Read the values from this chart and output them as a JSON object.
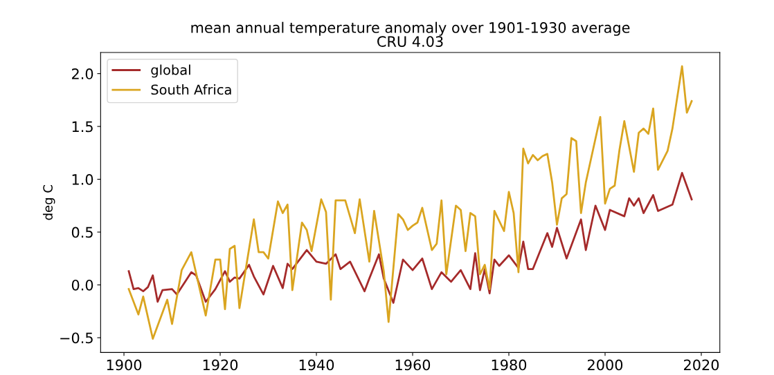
{
  "chart_data": {
    "type": "line",
    "title": "mean annual temperature anomaly over 1901-1930 average\nCRU 4.03",
    "ylabel": "deg C",
    "xlim": [
      1895.15,
      2023.85
    ],
    "ylim": [
      -0.64,
      2.2
    ],
    "xticks": [
      1900,
      1920,
      1940,
      1960,
      1980,
      2000,
      2020
    ],
    "yticks": [
      {
        "value": -0.5,
        "label": "−0.5"
      },
      {
        "value": 0,
        "label": "0.0"
      },
      {
        "value": 0.5,
        "label": "0.5"
      },
      {
        "value": 1,
        "label": "1.0"
      },
      {
        "value": 1.5,
        "label": "1.5"
      },
      {
        "value": 2,
        "label": "2.0"
      }
    ],
    "legend": "top left",
    "grid": false,
    "line_style": "solid",
    "marker": "none",
    "series": [
      {
        "name": "global",
        "color": "#a52a2a",
        "x": [
          1901,
          1902,
          1903,
          1904,
          1905,
          1906,
          1907,
          1908,
          1910,
          1911,
          1914,
          1915,
          1917,
          1919,
          1921,
          1922,
          1923,
          1924,
          1926,
          1927,
          1929,
          1931,
          1933,
          1934,
          1935,
          1938,
          1940,
          1942,
          1944,
          1945,
          1947,
          1950,
          1951,
          1953,
          1954,
          1956,
          1958,
          1960,
          1962,
          1964,
          1966,
          1968,
          1970,
          1972,
          1973,
          1974,
          1975,
          1976,
          1977,
          1978,
          1980,
          1982,
          1983,
          1984,
          1985,
          1988,
          1989,
          1990,
          1992,
          1995,
          1996,
          1998,
          2000,
          2001,
          2004,
          2005,
          2006,
          2007,
          2008,
          2010,
          2011,
          2014,
          2016,
          2018
        ],
        "values": [
          0.13,
          -0.04,
          -0.03,
          -0.06,
          -0.02,
          0.09,
          -0.16,
          -0.05,
          -0.04,
          -0.09,
          0.12,
          0.09,
          -0.16,
          -0.04,
          0.13,
          0.03,
          0.07,
          0.06,
          0.19,
          0.08,
          -0.09,
          0.18,
          -0.03,
          0.2,
          0.15,
          0.33,
          0.22,
          0.2,
          0.29,
          0.15,
          0.22,
          -0.06,
          0.06,
          0.29,
          0.06,
          -0.17,
          0.24,
          0.14,
          0.25,
          -0.04,
          0.12,
          0.03,
          0.14,
          -0.04,
          0.3,
          -0.05,
          0.15,
          -0.08,
          0.24,
          0.18,
          0.28,
          0.16,
          0.41,
          0.15,
          0.15,
          0.49,
          0.36,
          0.54,
          0.25,
          0.62,
          0.33,
          0.75,
          0.52,
          0.71,
          0.65,
          0.82,
          0.75,
          0.82,
          0.68,
          0.85,
          0.7,
          0.76,
          1.06,
          0.81
        ]
      },
      {
        "name": "South Africa",
        "color": "#daa520",
        "x": [
          1901,
          1903,
          1904,
          1906,
          1909,
          1910,
          1912,
          1914,
          1917,
          1919,
          1920,
          1921,
          1922,
          1923,
          1924,
          1927,
          1928,
          1929,
          1930,
          1932,
          1933,
          1934,
          1935,
          1937,
          1938,
          1939,
          1941,
          1942,
          1943,
          1944,
          1945,
          1946,
          1948,
          1949,
          1951,
          1952,
          1954,
          1955,
          1957,
          1958,
          1959,
          1960,
          1961,
          1962,
          1964,
          1965,
          1966,
          1967,
          1969,
          1970,
          1971,
          1972,
          1973,
          1974,
          1975,
          1976,
          1977,
          1979,
          1980,
          1981,
          1982,
          1983,
          1984,
          1985,
          1986,
          1987,
          1988,
          1989,
          1990,
          1991,
          1992,
          1993,
          1994,
          1995,
          1996,
          1999,
          2000,
          2001,
          2002,
          2003,
          2004,
          2006,
          2007,
          2008,
          2009,
          2010,
          2011,
          2013,
          2014,
          2016,
          2017,
          2018
        ],
        "values": [
          -0.04,
          -0.28,
          -0.11,
          -0.51,
          -0.14,
          -0.37,
          0.14,
          0.31,
          -0.29,
          0.24,
          0.24,
          -0.23,
          0.34,
          0.37,
          -0.22,
          0.62,
          0.31,
          0.31,
          0.25,
          0.79,
          0.68,
          0.76,
          -0.05,
          0.59,
          0.52,
          0.32,
          0.81,
          0.69,
          -0.14,
          0.8,
          0.8,
          0.8,
          0.49,
          0.81,
          0.22,
          0.7,
          0.13,
          -0.35,
          0.67,
          0.62,
          0.52,
          0.56,
          0.59,
          0.73,
          0.33,
          0.39,
          0.8,
          0.1,
          0.75,
          0.71,
          0.32,
          0.68,
          0.65,
          0.1,
          0.19,
          -0.04,
          0.7,
          0.51,
          0.88,
          0.68,
          0.12,
          1.29,
          1.15,
          1.23,
          1.18,
          1.22,
          1.24,
          0.97,
          0.57,
          0.82,
          0.86,
          1.39,
          1.36,
          0.68,
          0.97,
          1.59,
          0.77,
          0.91,
          0.94,
          1.28,
          1.55,
          1.07,
          1.44,
          1.48,
          1.43,
          1.67,
          1.09,
          1.27,
          1.48,
          2.07,
          1.63,
          1.74
        ]
      }
    ]
  }
}
